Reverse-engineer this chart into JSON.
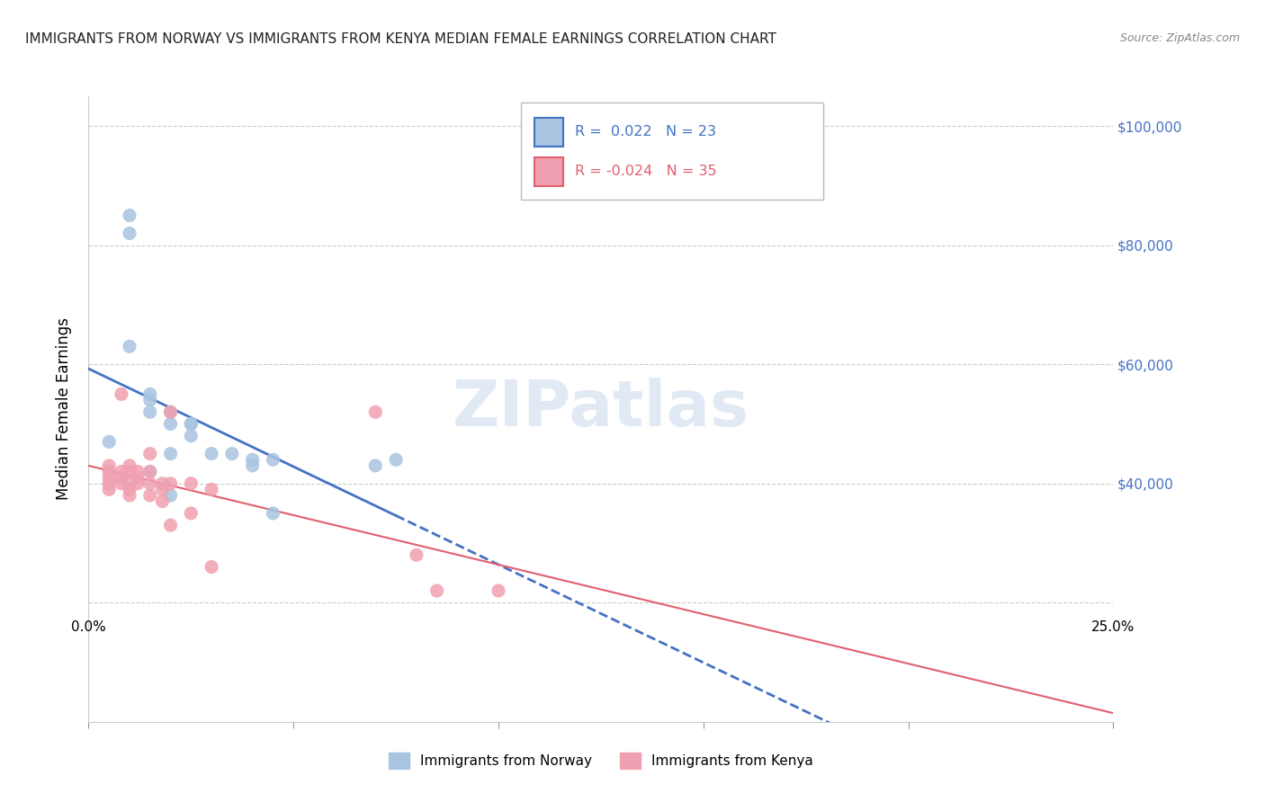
{
  "title": "IMMIGRANTS FROM NORWAY VS IMMIGRANTS FROM KENYA MEDIAN FEMALE EARNINGS CORRELATION CHART",
  "source": "Source: ZipAtlas.com",
  "ylabel": "Median Female Earnings",
  "yticks": [
    0,
    20000,
    40000,
    60000,
    80000,
    100000
  ],
  "xlim": [
    0.0,
    0.25
  ],
  "ylim": [
    20000,
    105000
  ],
  "norway_R": 0.022,
  "norway_N": 23,
  "kenya_R": -0.024,
  "kenya_N": 35,
  "norway_color": "#a8c4e0",
  "kenya_color": "#f0a0b0",
  "norway_line_color": "#4472c4",
  "kenya_line_color": "#e06070",
  "background_color": "#ffffff",
  "grid_color": "#cccccc",
  "norway_x": [
    0.005,
    0.01,
    0.01,
    0.01,
    0.015,
    0.015,
    0.015,
    0.015,
    0.02,
    0.02,
    0.02,
    0.02,
    0.025,
    0.025,
    0.025,
    0.03,
    0.035,
    0.04,
    0.04,
    0.045,
    0.045,
    0.07,
    0.075
  ],
  "norway_y": [
    47000,
    85000,
    82000,
    63000,
    55000,
    54000,
    52000,
    42000,
    52000,
    50000,
    45000,
    38000,
    50000,
    50000,
    48000,
    45000,
    45000,
    43000,
    44000,
    44000,
    35000,
    43000,
    44000
  ],
  "kenya_x": [
    0.005,
    0.005,
    0.005,
    0.005,
    0.005,
    0.008,
    0.008,
    0.008,
    0.008,
    0.01,
    0.01,
    0.01,
    0.01,
    0.01,
    0.012,
    0.012,
    0.012,
    0.015,
    0.015,
    0.015,
    0.015,
    0.018,
    0.018,
    0.018,
    0.02,
    0.02,
    0.02,
    0.025,
    0.025,
    0.03,
    0.03,
    0.07,
    0.08,
    0.085,
    0.1
  ],
  "kenya_y": [
    43000,
    42000,
    41000,
    40000,
    39000,
    55000,
    42000,
    41000,
    40000,
    43000,
    42000,
    40000,
    39000,
    38000,
    42000,
    41000,
    40000,
    45000,
    42000,
    40000,
    38000,
    40000,
    39000,
    37000,
    52000,
    40000,
    33000,
    40000,
    35000,
    39000,
    26000,
    52000,
    28000,
    22000,
    22000
  ]
}
